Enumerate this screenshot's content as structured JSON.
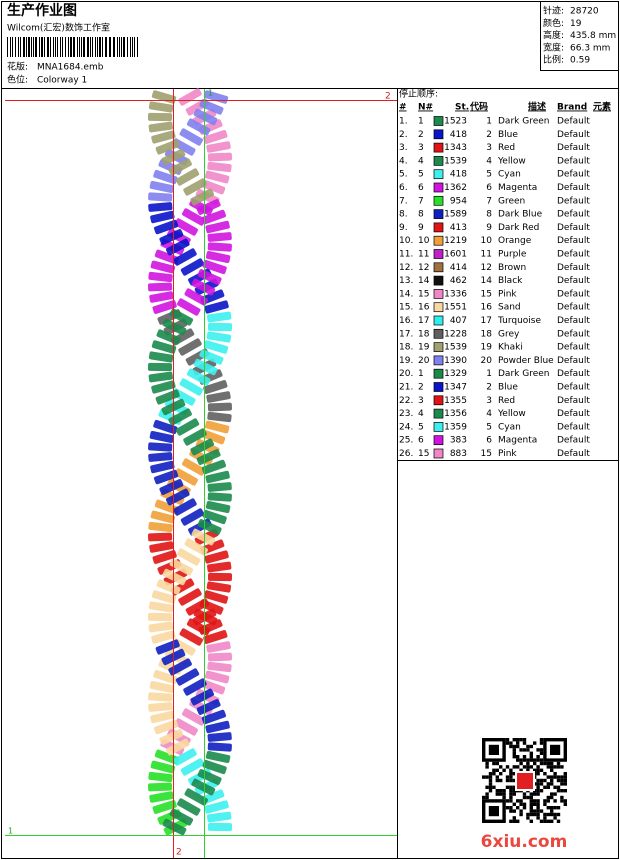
{
  "header": {
    "title": "生产作业图",
    "studio": "Wilcom(汇宏)数饰工作室",
    "design": {
      "label": "花版:",
      "value": "MNA1684.emb"
    },
    "colorway": {
      "label": "色位:",
      "value": "Colorway 1"
    }
  },
  "info": [
    {
      "label": "针迹:",
      "value": "28720"
    },
    {
      "label": "颜色:",
      "value": "19"
    },
    {
      "label": "高度:",
      "value": "435.8 mm"
    },
    {
      "label": "宽度:",
      "value": "66.3 mm"
    },
    {
      "label": "比例:",
      "value": "0.59"
    }
  ],
  "sheet": {
    "markers": {
      "top": "1",
      "right": "2",
      "bottom": "2",
      "left": "1"
    }
  },
  "table": {
    "title": "停止顺序:",
    "columns": [
      "#",
      "N#",
      "St.",
      "代码",
      "描述",
      "Brand",
      "元素"
    ],
    "rows": [
      [
        "1.",
        "1",
        "#1b8a4c",
        "1523",
        "1",
        "Dark Green",
        "Default"
      ],
      [
        "2.",
        "2",
        "#0a14c8",
        "418",
        "2",
        "Blue",
        "Default"
      ],
      [
        "3.",
        "3",
        "#e01414",
        "1343",
        "3",
        "Red",
        "Default"
      ],
      [
        "4.",
        "4",
        "#1b8a4c",
        "1539",
        "4",
        "Yellow",
        "Default"
      ],
      [
        "5.",
        "5",
        "#3cf0f0",
        "418",
        "5",
        "Cyan",
        "Default"
      ],
      [
        "6.",
        "6",
        "#d014e0",
        "1362",
        "6",
        "Magenta",
        "Default"
      ],
      [
        "7.",
        "7",
        "#28e028",
        "954",
        "7",
        "Green",
        "Default"
      ],
      [
        "8.",
        "8",
        "#1020c0",
        "1589",
        "8",
        "Dark Blue",
        "Default"
      ],
      [
        "9.",
        "9",
        "#e01414",
        "413",
        "9",
        "Dark Red",
        "Default"
      ],
      [
        "10.",
        "10",
        "#f0a038",
        "1219",
        "10",
        "Orange",
        "Default"
      ],
      [
        "11.",
        "11",
        "#c020c8",
        "1601",
        "11",
        "Purple",
        "Default"
      ],
      [
        "12.",
        "12",
        "#a07040",
        "414",
        "12",
        "Brown",
        "Default"
      ],
      [
        "13.",
        "14",
        "#101010",
        "462",
        "14",
        "Black",
        "Default"
      ],
      [
        "14.",
        "15",
        "#f088c8",
        "1336",
        "15",
        "Pink",
        "Default"
      ],
      [
        "15.",
        "16",
        "#f8d8a0",
        "1551",
        "16",
        "Sand",
        "Default"
      ],
      [
        "16.",
        "17",
        "#30ecec",
        "407",
        "17",
        "Turquoise",
        "Default"
      ],
      [
        "17.",
        "18",
        "#606060",
        "1228",
        "18",
        "Grey",
        "Default"
      ],
      [
        "18.",
        "19",
        "#a0a070",
        "1539",
        "19",
        "Khaki",
        "Default"
      ],
      [
        "19.",
        "20",
        "#8080f0",
        "1390",
        "20",
        "Powder Blue",
        "Default"
      ],
      [
        "20.",
        "1",
        "#1b8a4c",
        "1329",
        "1",
        "Dark Green",
        "Default"
      ],
      [
        "21.",
        "2",
        "#0a14c8",
        "1347",
        "2",
        "Blue",
        "Default"
      ],
      [
        "22.",
        "3",
        "#e01414",
        "1355",
        "3",
        "Red",
        "Default"
      ],
      [
        "23.",
        "4",
        "#1b8a4c",
        "1356",
        "4",
        "Yellow",
        "Default"
      ],
      [
        "24.",
        "5",
        "#3cf0f0",
        "1359",
        "5",
        "Cyan",
        "Default"
      ],
      [
        "25.",
        "6",
        "#d014e0",
        "383",
        "6",
        "Magenta",
        "Default"
      ],
      [
        "26.",
        "15",
        "#f088c8",
        "883",
        "15",
        "Pink",
        "Default"
      ]
    ]
  },
  "watermark": "6xiu.com"
}
